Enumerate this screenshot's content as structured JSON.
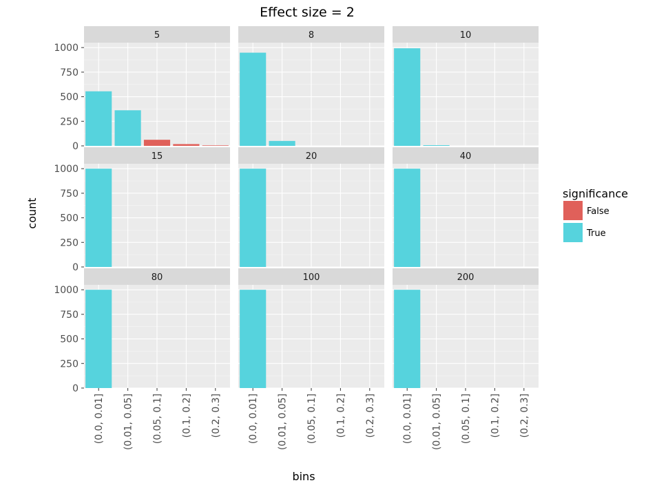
{
  "chart_data": {
    "type": "bar",
    "title": "Effect size = 2",
    "xlabel": "bins",
    "ylabel": "count",
    "categories": [
      "(0.0, 0.01]",
      "(0.01, 0.05]",
      "(0.05, 0.1]",
      "(0.1, 0.2]",
      "(0.2, 0.3]"
    ],
    "ylim": [
      0,
      1050
    ],
    "yticks": [
      0,
      250,
      500,
      750,
      1000
    ],
    "legend": {
      "title": "significance",
      "placement": "right",
      "entries": [
        {
          "label": "False",
          "color": "#e0605a"
        },
        {
          "label": "True",
          "color": "#56d3dd"
        }
      ]
    },
    "facets": [
      {
        "label": "5",
        "bars": [
          {
            "category": "(0.0, 0.01]",
            "value": 555,
            "significance": "True"
          },
          {
            "category": "(0.01, 0.05]",
            "value": 362,
            "significance": "True"
          },
          {
            "category": "(0.05, 0.1]",
            "value": 62,
            "significance": "False"
          },
          {
            "category": "(0.1, 0.2]",
            "value": 18,
            "significance": "False"
          },
          {
            "category": "(0.2, 0.3]",
            "value": 5,
            "significance": "False"
          }
        ]
      },
      {
        "label": "8",
        "bars": [
          {
            "category": "(0.0, 0.01]",
            "value": 948,
            "significance": "True"
          },
          {
            "category": "(0.01, 0.05]",
            "value": 50,
            "significance": "True"
          }
        ]
      },
      {
        "label": "10",
        "bars": [
          {
            "category": "(0.0, 0.01]",
            "value": 993,
            "significance": "True"
          },
          {
            "category": "(0.01, 0.05]",
            "value": 7,
            "significance": "True"
          }
        ]
      },
      {
        "label": "15",
        "bars": [
          {
            "category": "(0.0, 0.01]",
            "value": 1000,
            "significance": "True"
          }
        ]
      },
      {
        "label": "20",
        "bars": [
          {
            "category": "(0.0, 0.01]",
            "value": 1000,
            "significance": "True"
          }
        ]
      },
      {
        "label": "40",
        "bars": [
          {
            "category": "(0.0, 0.01]",
            "value": 1000,
            "significance": "True"
          }
        ]
      },
      {
        "label": "80",
        "bars": [
          {
            "category": "(0.0, 0.01]",
            "value": 1000,
            "significance": "True"
          }
        ]
      },
      {
        "label": "100",
        "bars": [
          {
            "category": "(0.0, 0.01]",
            "value": 1000,
            "significance": "True"
          }
        ]
      },
      {
        "label": "200",
        "bars": [
          {
            "category": "(0.0, 0.01]",
            "value": 1000,
            "significance": "True"
          }
        ]
      }
    ]
  }
}
